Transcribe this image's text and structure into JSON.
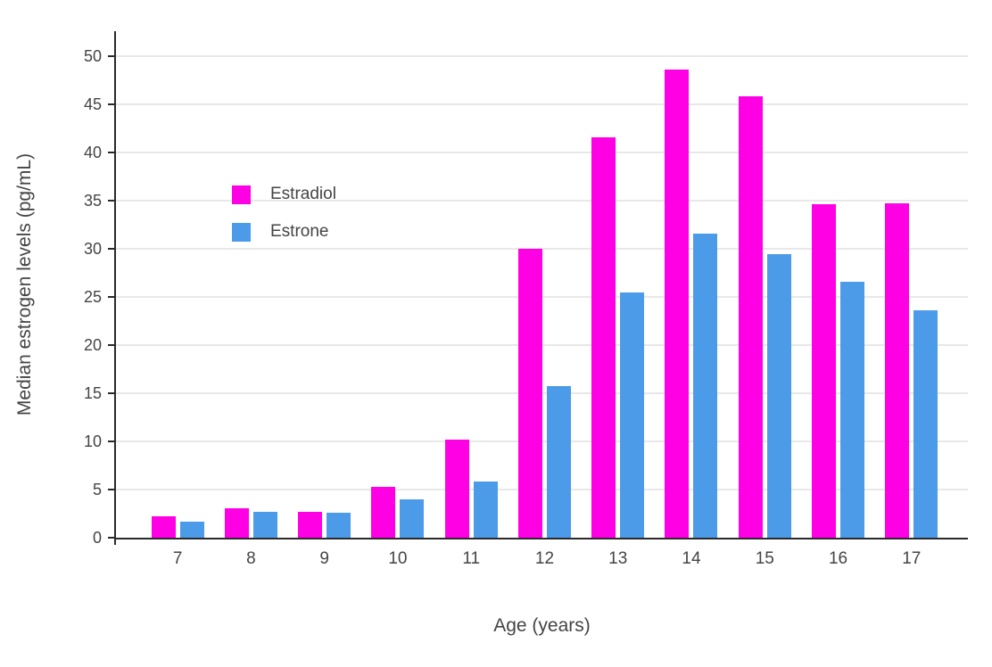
{
  "chart_data": {
    "type": "bar",
    "title": "",
    "xlabel": "Age (years)",
    "ylabel": "Median estrogen levels (pg/mL)",
    "categories": [
      "7",
      "8",
      "9",
      "10",
      "11",
      "12",
      "13",
      "14",
      "15",
      "16",
      "17"
    ],
    "series": [
      {
        "name": "Estradiol",
        "color": "#FF00E5",
        "values": [
          2.2,
          3.1,
          2.7,
          5.3,
          10.2,
          30.0,
          41.6,
          48.6,
          45.8,
          34.6,
          34.7
        ]
      },
      {
        "name": "Estrone",
        "color": "#4C9BE8",
        "values": [
          1.7,
          2.7,
          2.6,
          4.0,
          5.8,
          15.7,
          25.5,
          31.6,
          29.4,
          26.6,
          23.6
        ]
      }
    ],
    "ylim": [
      0,
      50
    ],
    "yticks": [
      0,
      5,
      10,
      15,
      20,
      25,
      30,
      35,
      40,
      45,
      50
    ],
    "grid": true,
    "legend_position": "inside-top-left",
    "colors": {
      "axis_line": "#2a2a2a",
      "gridline": "#e8e8e8",
      "text": "#444444",
      "background": "#ffffff"
    }
  }
}
